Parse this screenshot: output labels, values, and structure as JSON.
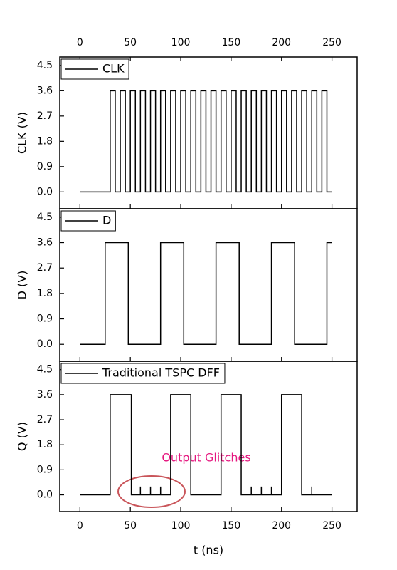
{
  "chart_data": [
    {
      "type": "line",
      "ylabel": "CLK (V)",
      "xlim": [
        -20,
        275
      ],
      "xticks": [
        0,
        50,
        100,
        150,
        200,
        250
      ],
      "xticks_position": "top",
      "ylim": [
        -0.6,
        4.8
      ],
      "yticks": [
        {
          "value": 0,
          "label": "0.0"
        },
        0.9,
        1.8,
        2.7,
        3.6,
        4.5
      ],
      "series": [
        {
          "name": "CLK",
          "color": "#000000",
          "x": [
            0,
            30,
            30,
            35,
            35,
            40,
            40,
            45,
            45,
            50,
            50,
            55,
            55,
            60,
            60,
            65,
            65,
            70,
            70,
            75,
            75,
            80,
            80,
            85,
            85,
            90,
            90,
            95,
            95,
            100,
            100,
            105,
            105,
            110,
            110,
            115,
            115,
            120,
            120,
            125,
            125,
            130,
            130,
            135,
            135,
            140,
            140,
            145,
            145,
            150,
            150,
            155,
            155,
            160,
            160,
            165,
            165,
            170,
            170,
            175,
            175,
            180,
            180,
            185,
            185,
            190,
            190,
            195,
            195,
            200,
            200,
            205,
            205,
            210,
            210,
            215,
            215,
            220,
            220,
            225,
            225,
            230,
            230,
            235,
            235,
            240,
            240,
            245,
            245,
            250
          ],
          "values": [
            0,
            0,
            3.6,
            3.6,
            0,
            0,
            3.6,
            3.6,
            0,
            0,
            3.6,
            3.6,
            0,
            0,
            3.6,
            3.6,
            0,
            0,
            3.6,
            3.6,
            0,
            0,
            3.6,
            3.6,
            0,
            0,
            3.6,
            3.6,
            0,
            0,
            3.6,
            3.6,
            0,
            0,
            3.6,
            3.6,
            0,
            0,
            3.6,
            3.6,
            0,
            0,
            3.6,
            3.6,
            0,
            0,
            3.6,
            3.6,
            0,
            0,
            3.6,
            3.6,
            0,
            0,
            3.6,
            3.6,
            0,
            0,
            3.6,
            3.6,
            0,
            0,
            3.6,
            3.6,
            0,
            0,
            3.6,
            3.6,
            0,
            0,
            3.6,
            3.6,
            0,
            0,
            3.6,
            3.6,
            0,
            0,
            3.6,
            3.6,
            0,
            0,
            3.6,
            3.6,
            0,
            0,
            3.6,
            3.6,
            0,
            0
          ]
        }
      ]
    },
    {
      "type": "line",
      "ylabel": "D (V)",
      "xlim": [
        -20,
        275
      ],
      "ylim": [
        -0.6,
        4.8
      ],
      "yticks": [
        {
          "value": 0,
          "label": "0.0"
        },
        0.9,
        1.8,
        2.7,
        3.6,
        4.5
      ],
      "series": [
        {
          "name": "D",
          "color": "#000000",
          "x": [
            0,
            25,
            25,
            48,
            48,
            80,
            80,
            103,
            103,
            135,
            135,
            158,
            158,
            190,
            190,
            213,
            213,
            245,
            245,
            250
          ],
          "values": [
            0,
            0,
            3.6,
            3.6,
            0,
            0,
            3.6,
            3.6,
            0,
            0,
            3.6,
            3.6,
            0,
            0,
            3.6,
            3.6,
            0,
            0,
            3.6,
            3.6
          ]
        }
      ]
    },
    {
      "type": "line",
      "ylabel": "Q (V)",
      "xlabel": "t (ns)",
      "xlim": [
        -20,
        275
      ],
      "xticks": [
        0,
        50,
        100,
        150,
        200,
        250
      ],
      "xticks_position": "bottom",
      "ylim": [
        -0.6,
        4.8
      ],
      "yticks": [
        {
          "value": 0,
          "label": "0.0"
        },
        0.9,
        1.8,
        2.7,
        3.6,
        4.5
      ],
      "annotation": "Output Glitches",
      "series": [
        {
          "name": "Traditional TSPC DFF",
          "color": "#000000",
          "x": [
            0,
            30,
            30,
            51,
            51,
            60,
            60,
            60,
            70,
            70,
            70,
            80,
            80,
            80,
            90,
            90,
            110,
            110,
            140,
            140,
            160,
            160,
            170,
            170,
            170,
            180,
            180,
            180,
            190,
            190,
            190,
            200,
            200,
            220,
            220,
            230,
            230,
            230,
            250
          ],
          "values": [
            0,
            0,
            3.6,
            3.6,
            0,
            0,
            0.3,
            0,
            0,
            0.3,
            0,
            0,
            0.3,
            0,
            0,
            3.6,
            3.6,
            0,
            0,
            3.6,
            3.6,
            0,
            0,
            0.3,
            0,
            0,
            0.3,
            0,
            0,
            0.3,
            0,
            0,
            3.6,
            3.6,
            0,
            0,
            0.3,
            0,
            0
          ]
        }
      ]
    }
  ]
}
